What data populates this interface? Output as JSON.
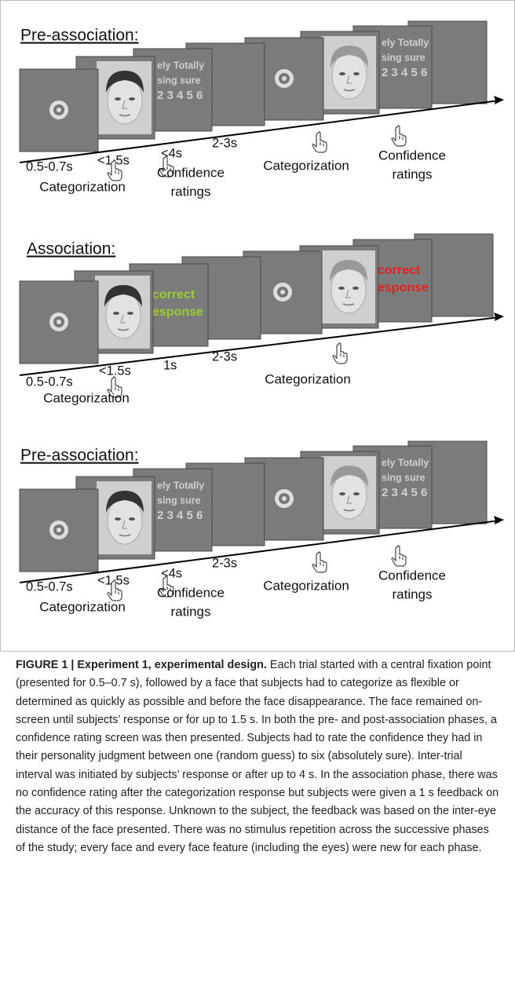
{
  "panels": [
    {
      "title": "Pre-association:",
      "rating_screens": [
        [
          "ely Totally",
          "sing sure",
          "2 3 4 5 6"
        ],
        [
          "ely Totally",
          "sing sure",
          "2 3 4 5 6"
        ]
      ],
      "timings": [
        "0.5-0.7s",
        "<1.5s",
        "<4s",
        "2-3s"
      ],
      "responses": [
        [
          "Categorization"
        ],
        [
          "Confidence",
          "ratings"
        ],
        [
          "Categorization"
        ],
        [
          "Confidence",
          "ratings"
        ]
      ]
    },
    {
      "title": "Association:",
      "feedback_screens": [
        {
          "lines": [
            "correct",
            "esponse"
          ],
          "color": "#9acd32"
        },
        {
          "lines": [
            "correct",
            "esponse"
          ],
          "color": "#e8201c"
        }
      ],
      "timings": [
        "0.5-0.7s",
        "<1.5s",
        "1s",
        "2-3s"
      ],
      "responses": [
        [
          "Categorization"
        ],
        [
          "Categorization"
        ]
      ]
    },
    {
      "title": "Pre-association:",
      "rating_screens": [
        [
          "ely Totally",
          "sing sure",
          "2 3 4 5 6"
        ],
        [
          "ely Totally",
          "sing sure",
          "2 3 4 5 6"
        ]
      ],
      "timings": [
        "0.5-0.7s",
        "<1.5s",
        "<4s",
        "2-3s"
      ],
      "responses": [
        [
          "Categorization"
        ],
        [
          "Confidence",
          "ratings"
        ],
        [
          "Categorization"
        ],
        [
          "Confidence",
          "ratings"
        ]
      ]
    }
  ],
  "caption": {
    "label": "FIGURE 1 | Experiment 1, experimental design.",
    "text": "Each trial started with a central fixation point (presented for 0.5–0.7 s), followed by a face that subjects had to categorize as flexible or determined as quickly as possible and before the face disappearance. The face remained on-screen until subjects’ response or for up to 1.5 s. In both the pre- and post-association phases, a confidence rating screen was then presented. Subjects had to rate the confidence they had in their personality judgment between one (random guess) to six (absolutely sure). Inter-trial interval was initiated by subjects’ response or after up to 4 s. In the association phase, there was no confidence rating after the categorization response but subjects were given a 1 s feedback on the accuracy of this response. Unknown to the subject, the feedback was based on the inter-eye distance of the face presented. There was no stimulus repetition across the successive phases of the study; every face and every face feature (including the eyes) were new for each phase."
  }
}
